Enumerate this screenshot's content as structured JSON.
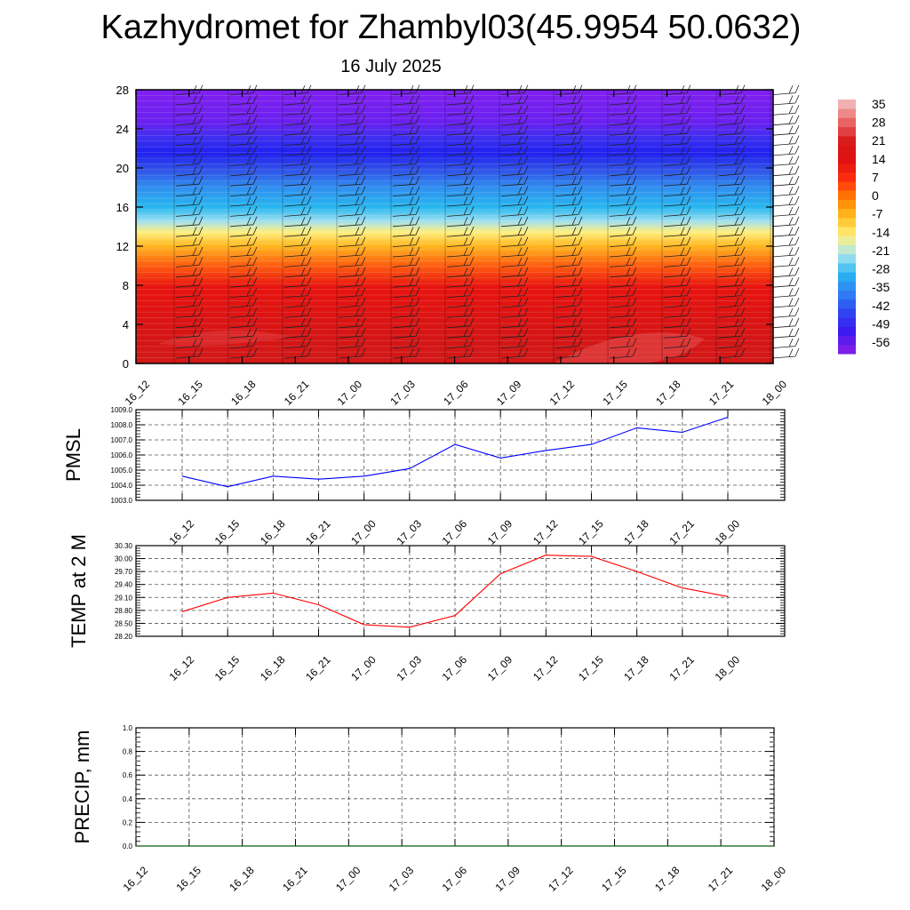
{
  "header": {
    "title": "Kazhydromet for Zhambyl03(45.9954 50.0632)",
    "date": "16 July 2025"
  },
  "colors": {
    "pmsl_line": "#0000ff",
    "temp_line": "#ff0000",
    "precip_line": "#006400",
    "colorbar": [
      "#7a1ee8",
      "#3a1af0",
      "#2f46f0",
      "#3080f5",
      "#28b4f0",
      "#a8e4f0",
      "#fff080",
      "#ffc020",
      "#ff8000",
      "#ff3010",
      "#e01010",
      "#d81818",
      "#e86060",
      "#f2b0b0"
    ]
  },
  "chart_data": [
    {
      "id": "wind_temp_profile",
      "type": "heatmap",
      "x_ticks": [
        "16_12",
        "16_15",
        "16_18",
        "16_21",
        "17_00",
        "17_03",
        "17_06",
        "17_09",
        "17_12",
        "17_15",
        "17_18",
        "17_21",
        "18_00"
      ],
      "y_ticks": [
        0,
        4,
        8,
        12,
        16,
        20,
        24,
        28
      ],
      "ylim": [
        0,
        28
      ],
      "colorbar_labels": [
        "35",
        "28",
        "21",
        "14",
        "7",
        "0",
        "-7",
        "-14",
        "-21",
        "-28",
        "-35",
        "-42",
        "-49",
        "-56"
      ],
      "temperature_by_level": [
        {
          "level": 0,
          "value": 30
        },
        {
          "level": 4,
          "value": 28
        },
        {
          "level": 8,
          "value": 22
        },
        {
          "level": 10,
          "value": 14
        },
        {
          "level": 12,
          "value": 3
        },
        {
          "level": 13.5,
          "value": -7
        },
        {
          "level": 14.5,
          "value": -17
        },
        {
          "level": 16,
          "value": -27
        },
        {
          "level": 18,
          "value": -38
        },
        {
          "level": 20,
          "value": -47
        },
        {
          "level": 21.5,
          "value": -56
        },
        {
          "level": 23,
          "value": -52
        },
        {
          "level": 24.5,
          "value": -58
        },
        {
          "level": 26,
          "value": -60
        },
        {
          "level": 28,
          "value": -60
        }
      ],
      "wind_barbs": true
    },
    {
      "id": "pmsl",
      "type": "line",
      "ylabel": "PMSL",
      "x": [
        "16_12",
        "16_15",
        "16_18",
        "16_21",
        "17_00",
        "17_03",
        "17_06",
        "17_09",
        "17_12",
        "17_15",
        "17_18",
        "17_21",
        "18_00"
      ],
      "y_ticks": [
        "1003.0",
        "1004.0",
        "1005.0",
        "1006.0",
        "1007.0",
        "1008.0",
        "1009.0"
      ],
      "ylim": [
        1003.0,
        1009.0
      ],
      "values": [
        1004.6,
        1003.9,
        1004.6,
        1004.4,
        1004.6,
        1005.1,
        1006.7,
        1005.8,
        1006.3,
        1006.7,
        1007.8,
        1007.5,
        1008.5
      ],
      "grid": true
    },
    {
      "id": "temp2m",
      "type": "line",
      "ylabel": "TEMP at 2 M",
      "x": [
        "16_12",
        "16_15",
        "16_18",
        "16_21",
        "17_00",
        "17_03",
        "17_06",
        "17_09",
        "17_12",
        "17_15",
        "17_18",
        "17_21",
        "18_00"
      ],
      "y_ticks": [
        "28.20",
        "28.50",
        "28.80",
        "29.10",
        "29.40",
        "29.70",
        "30.00",
        "30.30"
      ],
      "ylim": [
        28.2,
        30.3
      ],
      "values": [
        28.77,
        29.1,
        29.2,
        28.93,
        28.47,
        28.41,
        28.68,
        29.65,
        30.08,
        30.05,
        29.7,
        29.32,
        29.12
      ],
      "grid": true
    },
    {
      "id": "precip",
      "type": "line",
      "ylabel": "PRECIP, mm",
      "x": [
        "16_12",
        "16_15",
        "16_18",
        "16_21",
        "17_00",
        "17_03",
        "17_06",
        "17_09",
        "17_12",
        "17_15",
        "17_18",
        "17_21",
        "18_00"
      ],
      "y_ticks": [
        "0.0",
        "0.2",
        "0.4",
        "0.6",
        "0.8",
        "1.0"
      ],
      "ylim": [
        0,
        1.0
      ],
      "values": [
        0,
        0,
        0,
        0,
        0,
        0,
        0,
        0,
        0,
        0,
        0,
        0,
        0
      ],
      "grid": true
    }
  ]
}
